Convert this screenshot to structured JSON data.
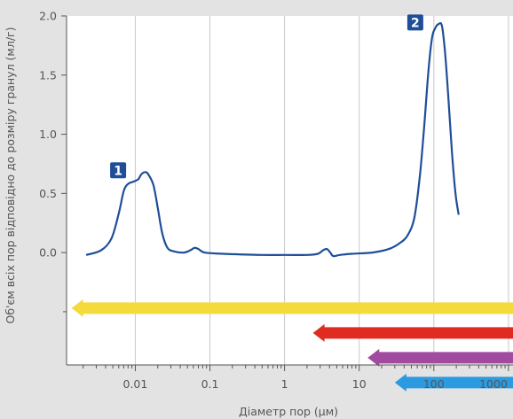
{
  "chart_data": {
    "type": "line",
    "title": "",
    "xlabel": "Діаметр пор (µм)",
    "ylabel": "Об'єм всіх пор відповідно до розміру гранул (мл/г)",
    "x_scale": "log",
    "xlim": [
      0.0012,
      1150
    ],
    "ylim": [
      -0.95,
      2.0
    ],
    "x_ticks": [
      "0.01",
      "0.1",
      "1",
      "10",
      "100",
      "1000"
    ],
    "y_ticks": [
      "0.0",
      "0.5",
      "1.0",
      "1.5",
      "2.0"
    ],
    "grid": "vertical",
    "series": [
      {
        "color": "#1f4e99",
        "points": [
          [
            0.0022,
            -0.02
          ],
          [
            0.0035,
            0.02
          ],
          [
            0.0048,
            0.12
          ],
          [
            0.006,
            0.33
          ],
          [
            0.007,
            0.52
          ],
          [
            0.008,
            0.58
          ],
          [
            0.0095,
            0.6
          ],
          [
            0.011,
            0.62
          ],
          [
            0.012,
            0.66
          ],
          [
            0.0135,
            0.68
          ],
          [
            0.015,
            0.66
          ],
          [
            0.0175,
            0.57
          ],
          [
            0.02,
            0.38
          ],
          [
            0.023,
            0.16
          ],
          [
            0.027,
            0.04
          ],
          [
            0.033,
            0.01
          ],
          [
            0.045,
            0.0
          ],
          [
            0.055,
            0.02
          ],
          [
            0.062,
            0.04
          ],
          [
            0.07,
            0.03
          ],
          [
            0.085,
            0.0
          ],
          [
            0.15,
            -0.01
          ],
          [
            0.5,
            -0.02
          ],
          [
            1.0,
            -0.02
          ],
          [
            2.0,
            -0.02
          ],
          [
            2.8,
            -0.01
          ],
          [
            3.3,
            0.02
          ],
          [
            3.7,
            0.03
          ],
          [
            4.1,
            0.0
          ],
          [
            4.5,
            -0.03
          ],
          [
            5.5,
            -0.02
          ],
          [
            8.0,
            -0.01
          ],
          [
            15,
            0.0
          ],
          [
            25,
            0.03
          ],
          [
            35,
            0.08
          ],
          [
            45,
            0.15
          ],
          [
            55,
            0.3
          ],
          [
            65,
            0.65
          ],
          [
            75,
            1.1
          ],
          [
            85,
            1.55
          ],
          [
            95,
            1.82
          ],
          [
            105,
            1.9
          ],
          [
            115,
            1.93
          ],
          [
            128,
            1.92
          ],
          [
            140,
            1.72
          ],
          [
            155,
            1.35
          ],
          [
            175,
            0.85
          ],
          [
            195,
            0.5
          ],
          [
            215,
            0.32
          ]
        ]
      }
    ],
    "peak_markers": [
      {
        "label": "1",
        "x": 0.012,
        "y": 0.68
      },
      {
        "label": "2",
        "x": 115,
        "y": 1.93
      }
    ],
    "range_arrows": [
      {
        "color": "#f5da3c",
        "from_x": 0.0014,
        "to_x": 1150
      },
      {
        "color": "#e02b20",
        "from_x": 2.4,
        "to_x": 1150
      },
      {
        "color": "#a14aa0",
        "from_x": 13,
        "to_x": 1150
      },
      {
        "color": "#2a9be0",
        "from_x": 30,
        "to_x": 1150
      }
    ]
  }
}
